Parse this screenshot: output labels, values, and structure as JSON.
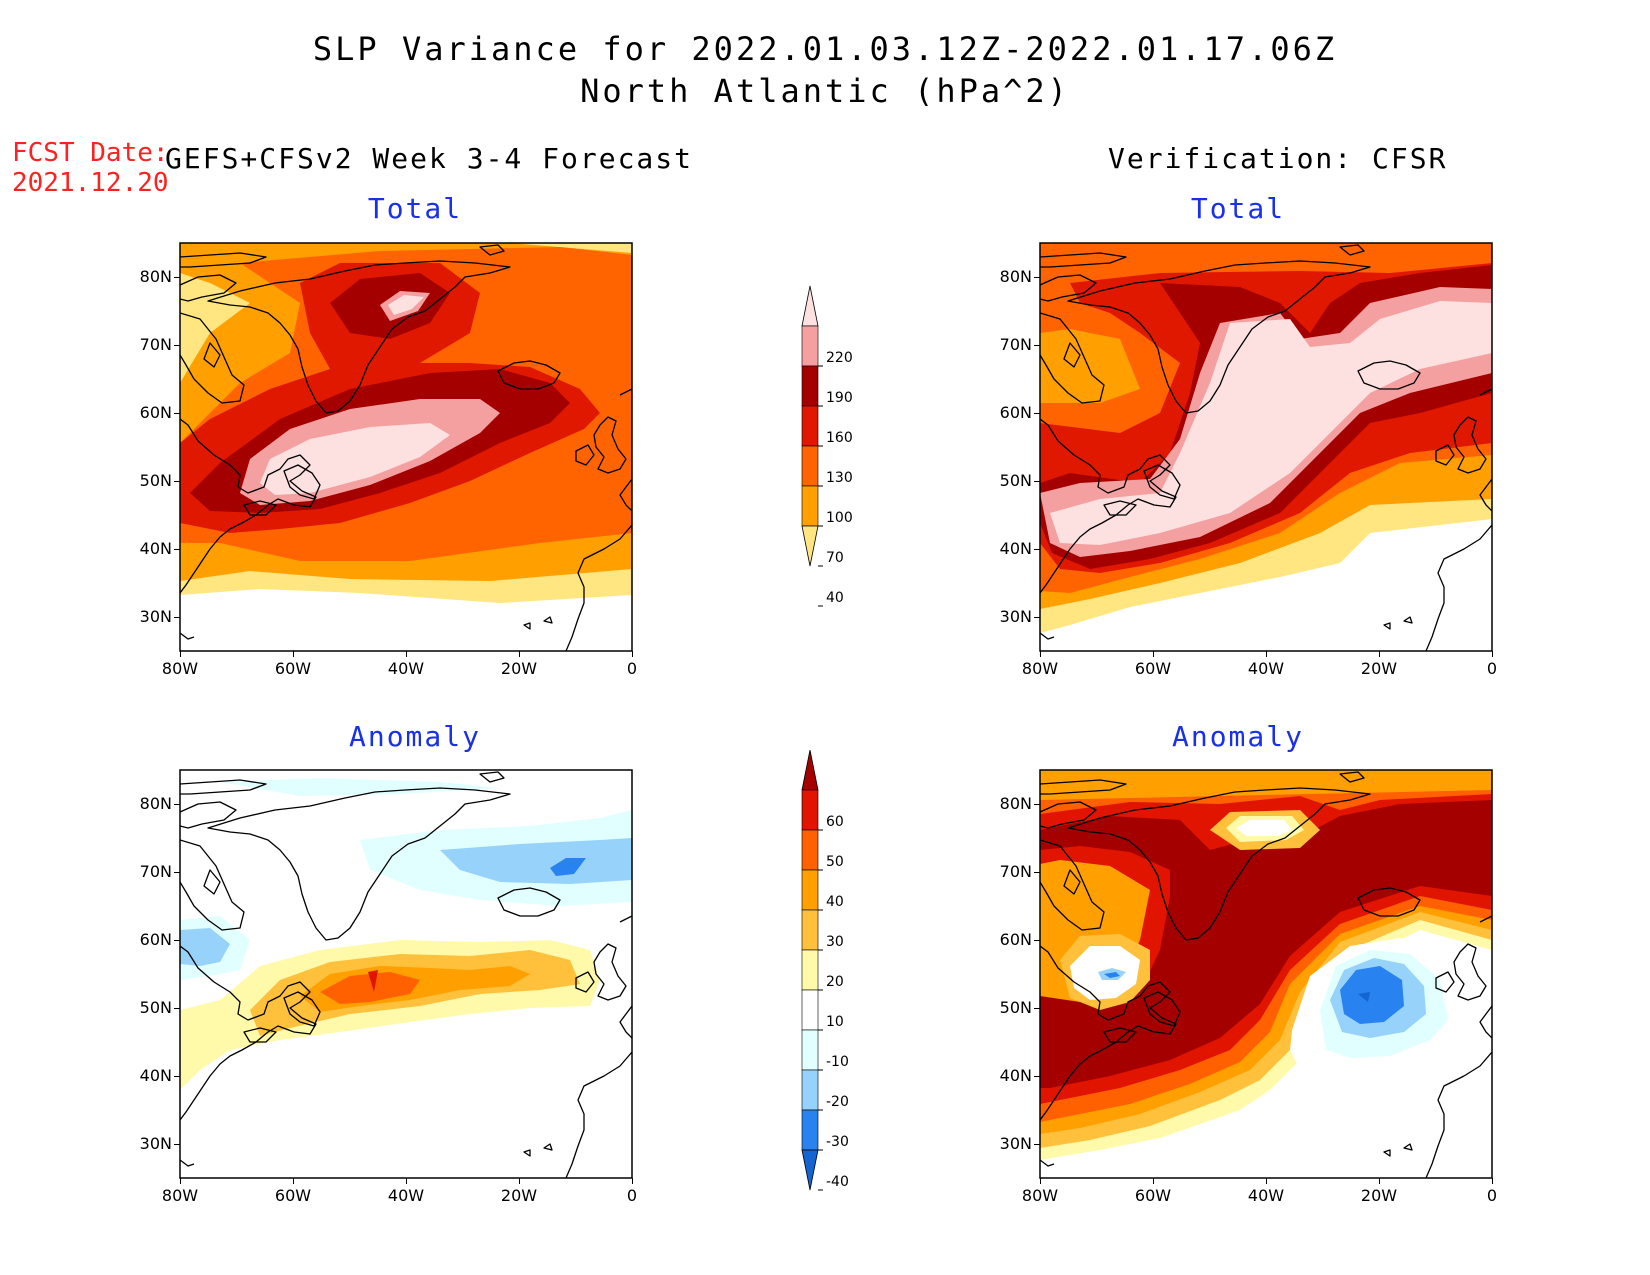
{
  "header": {
    "title_line1": "SLP Variance for 2022.01.03.12Z-2022.01.17.06Z",
    "title_line2": "North Atlantic (hPa^2)",
    "fcst_label": "FCST Date:",
    "fcst_date": "2021.12.20",
    "left_subtitle": "GEFS+CFSv2 Week 3-4 Forecast",
    "right_subtitle": "Verification: CFSR"
  },
  "panels": {
    "top_left_title": "Total",
    "top_right_title": "Total",
    "bottom_left_title": "Anomaly",
    "bottom_right_title": "Anomaly"
  },
  "axes": {
    "lat_ticks": [
      "80N",
      "70N",
      "60N",
      "50N",
      "40N",
      "30N"
    ],
    "lon_ticks": [
      "80W",
      "60W",
      "40W",
      "20W",
      "0"
    ],
    "lat_range": [
      25,
      85
    ],
    "lon_range": [
      -80,
      0
    ]
  },
  "colorbars": {
    "total": {
      "labels": [
        "40",
        "70",
        "100",
        "130",
        "160",
        "190",
        "220"
      ],
      "colors": [
        "#ffe680",
        "#ffa000",
        "#ff6400",
        "#e11800",
        "#a50000",
        "#f5a0a0",
        "#fde0e0"
      ]
    },
    "anomaly": {
      "labels": [
        "-40",
        "-30",
        "-20",
        "-10",
        "10",
        "20",
        "30",
        "40",
        "50",
        "60"
      ],
      "colors": [
        "#1464d2",
        "#2882f0",
        "#96d2fa",
        "#e1ffff",
        "#ffffff",
        "#fffaaa",
        "#ffc03c",
        "#ffa000",
        "#ff6000",
        "#e11400",
        "#a50000"
      ]
    }
  },
  "palette": {
    "panel_title_color": "#1a30e6",
    "fcst_color": "#ff2020"
  }
}
